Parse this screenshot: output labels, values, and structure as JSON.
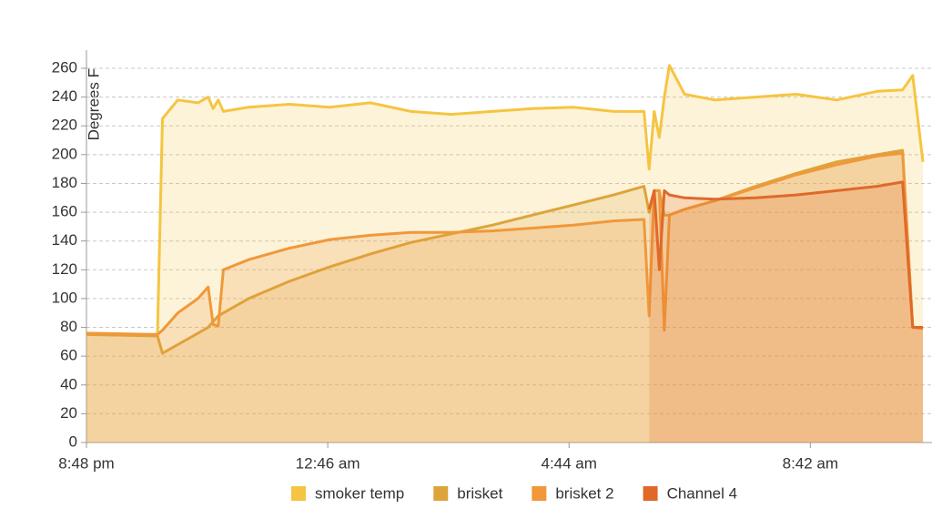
{
  "chart_data": {
    "type": "line",
    "y_label": "Degrees F",
    "x": [
      "8:48 pm",
      "9:58 pm",
      "10:03 pm",
      "10:18 pm",
      "10:38 pm",
      "10:48 pm",
      "10:53 pm",
      "10:58 pm",
      "11:03 pm",
      "11:28 pm",
      "12:08 am",
      "12:48 am",
      "1:28 am",
      "2:08 am",
      "2:48 am",
      "3:28 am",
      "4:08 am",
      "4:48 am",
      "5:28 am",
      "5:58 am",
      "6:03 am",
      "6:08 am",
      "6:13 am",
      "6:18 am",
      "6:23 am",
      "6:38 am",
      "7:08 am",
      "7:48 am",
      "8:28 am",
      "9:08 am",
      "9:48 am",
      "10:13 am",
      "10:23 am",
      "10:33 am"
    ],
    "series": [
      {
        "name": "smoker temp",
        "color": "#f5c542",
        "values": [
          75,
          75,
          225,
          238,
          236,
          240,
          232,
          238,
          230,
          233,
          235,
          233,
          236,
          230,
          228,
          230,
          232,
          233,
          230,
          230,
          190,
          230,
          212,
          240,
          262,
          242,
          238,
          240,
          242,
          238,
          244,
          245,
          255,
          195
        ]
      },
      {
        "name": "brisket",
        "color": "#dda43a",
        "values": [
          75,
          74,
          62,
          68,
          76,
          80,
          84,
          88,
          90,
          100,
          112,
          122,
          131,
          139,
          145,
          151,
          158,
          165,
          172,
          178,
          160,
          175,
          175,
          158,
          158,
          162,
          168,
          178,
          187,
          195,
          200,
          203,
          80,
          80
        ]
      },
      {
        "name": "brisket 2",
        "color": "#f0983a",
        "values": [
          76,
          75,
          78,
          90,
          100,
          108,
          82,
          81,
          120,
          127,
          135,
          141,
          144,
          146,
          146,
          147,
          149,
          151,
          154,
          155,
          88,
          175,
          175,
          78,
          158,
          162,
          168,
          177,
          186,
          193,
          199,
          201,
          80,
          79
        ]
      },
      {
        "name": "Channel 4",
        "color": "#e0692a",
        "values": [
          null,
          null,
          null,
          null,
          null,
          null,
          null,
          null,
          null,
          null,
          null,
          null,
          null,
          null,
          null,
          null,
          null,
          null,
          null,
          null,
          162,
          175,
          120,
          175,
          172,
          170,
          169,
          170,
          172,
          175,
          178,
          181,
          80,
          80
        ]
      }
    ],
    "xlim": [
      "8:48 pm",
      "10:42 am"
    ],
    "xticks": [
      "8:48 pm",
      "12:46 am",
      "4:44 am",
      "8:42 am"
    ],
    "ylim": [
      0,
      260
    ],
    "yticks": [
      0,
      20,
      40,
      60,
      80,
      100,
      120,
      140,
      160,
      180,
      200,
      220,
      240,
      260
    ],
    "grid": true
  }
}
